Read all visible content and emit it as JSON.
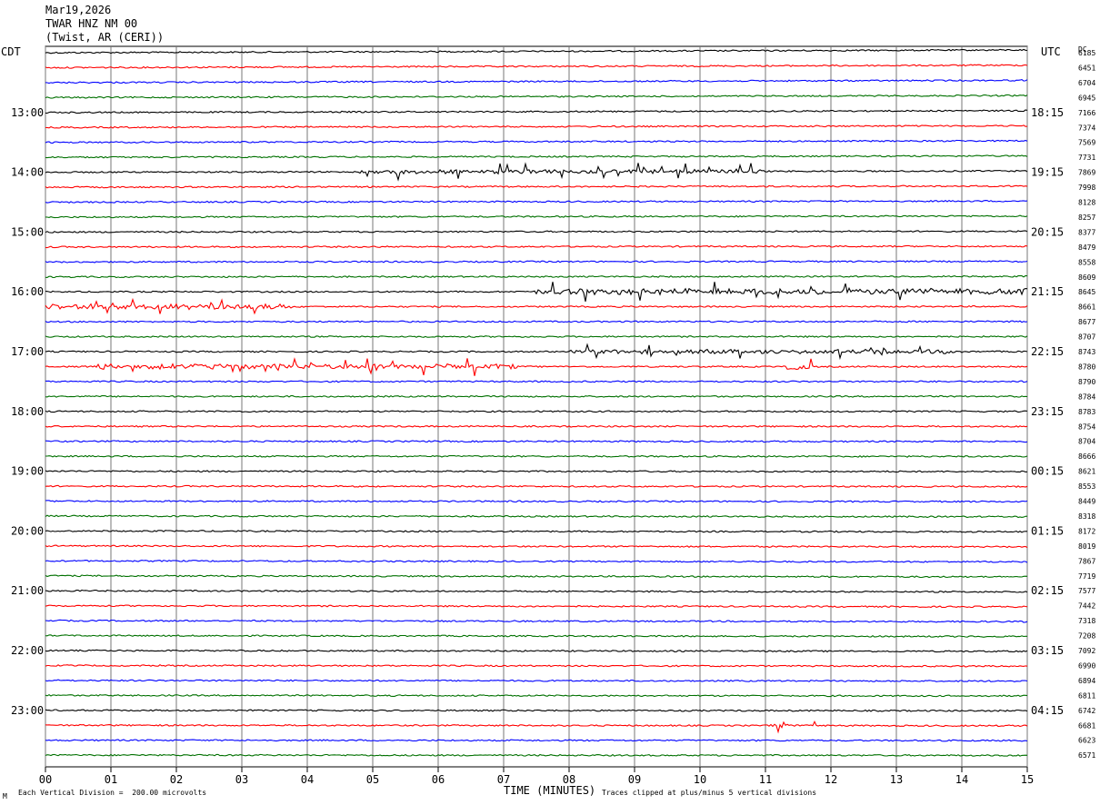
{
  "header": {
    "date": "Mar19,2026",
    "station": "TWAR HNZ NM 00",
    "location": "(Twist, AR (CERI))"
  },
  "left_label": "CDT",
  "right_label": "UTC",
  "dc_label": "DC",
  "footer": {
    "scale_note": "Each Vertical Division =  200.00 microvolts",
    "xlabel": "TIME (MINUTES)",
    "clip_note": "Traces clipped at plus/minus 5 vertical divisions",
    "corner_mark": "M"
  },
  "chart_data": {
    "type": "line",
    "xlabel": "TIME (MINUTES)",
    "xlim": [
      0,
      15
    ],
    "x_ticks": [
      "00",
      "01",
      "02",
      "03",
      "04",
      "05",
      "06",
      "07",
      "08",
      "09",
      "10",
      "11",
      "12",
      "13",
      "14",
      "15"
    ],
    "trace_colors": [
      "#000000",
      "#ff0000",
      "#0000ff",
      "#007000"
    ],
    "grid": true,
    "left_time_labels": [
      {
        "row": 4,
        "label": "13:00"
      },
      {
        "row": 8,
        "label": "14:00"
      },
      {
        "row": 12,
        "label": "15:00"
      },
      {
        "row": 16,
        "label": "16:00"
      },
      {
        "row": 20,
        "label": "17:00"
      },
      {
        "row": 24,
        "label": "18:00"
      },
      {
        "row": 28,
        "label": "19:00"
      },
      {
        "row": 32,
        "label": "20:00"
      },
      {
        "row": 36,
        "label": "21:00"
      },
      {
        "row": 40,
        "label": "22:00"
      },
      {
        "row": 44,
        "label": "23:00"
      }
    ],
    "right_time_labels": [
      {
        "row": 4,
        "label": "18:15"
      },
      {
        "row": 8,
        "label": "19:15"
      },
      {
        "row": 12,
        "label": "20:15"
      },
      {
        "row": 16,
        "label": "21:15"
      },
      {
        "row": 20,
        "label": "22:15"
      },
      {
        "row": 24,
        "label": "23:15"
      },
      {
        "row": 28,
        "label": "00:15"
      },
      {
        "row": 32,
        "label": "01:15"
      },
      {
        "row": 36,
        "label": "02:15"
      },
      {
        "row": 40,
        "label": "03:15"
      },
      {
        "row": 44,
        "label": "04:15"
      }
    ],
    "dc_offsets": [
      "6185",
      "6451",
      "6704",
      "6945",
      "7166",
      "7374",
      "7569",
      "7731",
      "7869",
      "7998",
      "8128",
      "8257",
      "8377",
      "8479",
      "8558",
      "8609",
      "8645",
      "8661",
      "8677",
      "8707",
      "8743",
      "8780",
      "8790",
      "8784",
      "8783",
      "8754",
      "8704",
      "8666",
      "8621",
      "8553",
      "8449",
      "8318",
      "8172",
      "8019",
      "7867",
      "7719",
      "7577",
      "7442",
      "7318",
      "7208",
      "7092",
      "6990",
      "6894",
      "6811",
      "6742",
      "6681",
      "6623",
      "6571"
    ],
    "trace_drift": [
      -30,
      -27,
      -25,
      -22,
      -20,
      -18,
      -17,
      -15,
      -14,
      -13,
      -12,
      -11,
      -9,
      -8,
      -6,
      -5,
      -4,
      -3,
      -2,
      -1,
      0,
      1,
      0,
      0,
      0,
      1,
      2,
      3,
      4,
      5,
      6,
      8,
      9,
      10,
      11,
      12,
      13,
      12,
      11,
      10,
      9,
      8,
      7,
      6,
      5,
      5,
      4,
      3
    ],
    "events": [
      {
        "row": 8,
        "x_start": 4.8,
        "x_end": 11.0,
        "amp": 8
      },
      {
        "row": 16,
        "x_start": 7.5,
        "x_end": 15.0,
        "amp": 12
      },
      {
        "row": 17,
        "x_start": 0.0,
        "x_end": 3.8,
        "amp": 10
      },
      {
        "row": 20,
        "x_start": 8.0,
        "x_end": 14.0,
        "amp": 8
      },
      {
        "row": 21,
        "x_start": 0.8,
        "x_end": 7.2,
        "amp": 10
      },
      {
        "row": 21,
        "x_start": 11.3,
        "x_end": 11.7,
        "amp": 12
      },
      {
        "row": 45,
        "x_start": 11.0,
        "x_end": 11.8,
        "amp": 6
      }
    ]
  }
}
